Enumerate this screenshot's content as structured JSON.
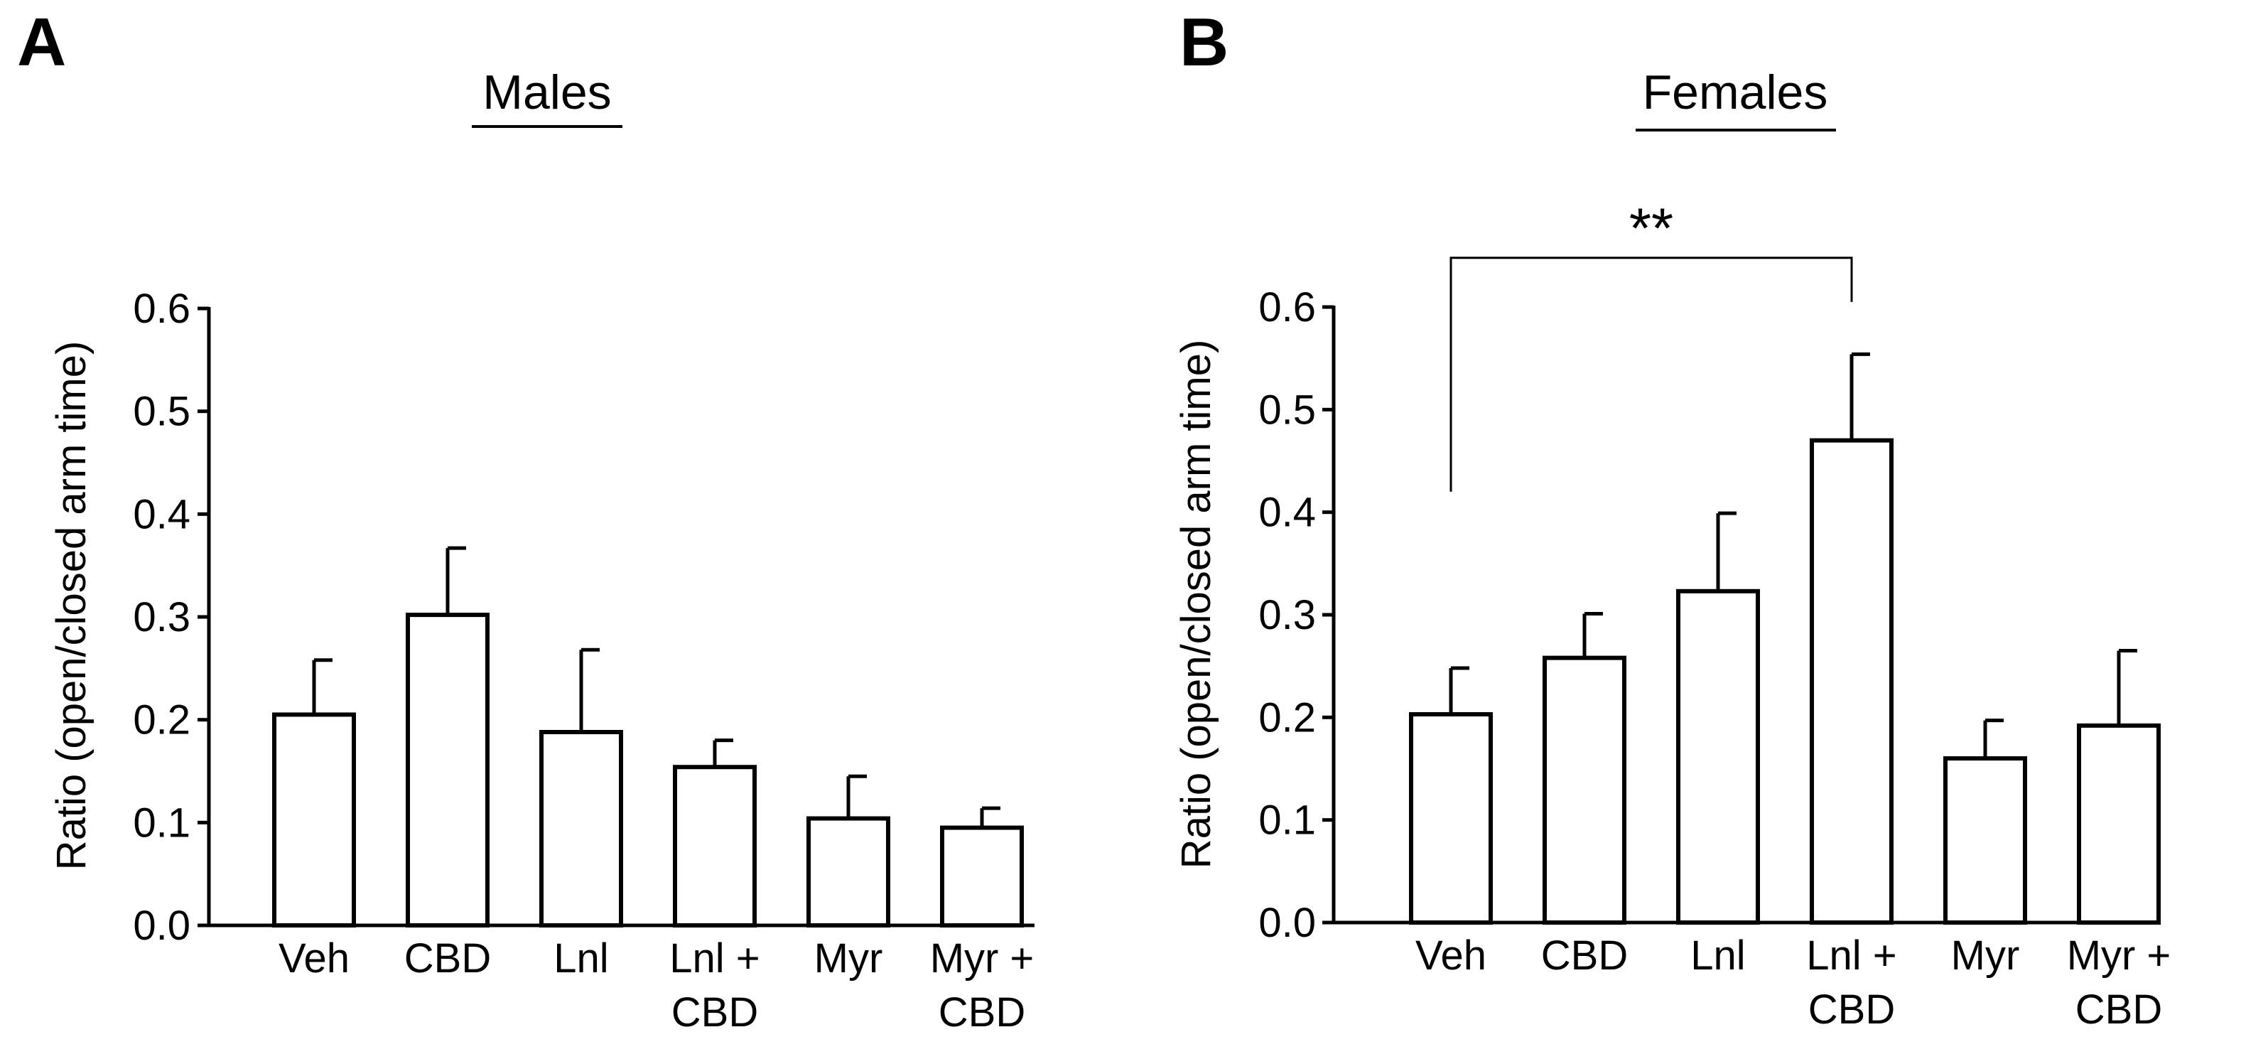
{
  "chart_data": [
    {
      "panel": "A",
      "type": "bar",
      "title": "Males",
      "ylabel": "Ratio (open/closed arm time)",
      "xlabel": "",
      "ylim": [
        0,
        0.6
      ],
      "yticks": [
        "0.0",
        "0.1",
        "0.2",
        "0.3",
        "0.4",
        "0.5",
        "0.6"
      ],
      "categories": [
        [
          "Veh"
        ],
        [
          "CBD"
        ],
        [
          "Lnl"
        ],
        [
          "Lnl +",
          "CBD"
        ],
        [
          "Myr"
        ],
        [
          "Myr +",
          "CBD"
        ]
      ],
      "values": [
        0.205,
        0.302,
        0.188,
        0.154,
        0.104,
        0.095
      ],
      "errors": [
        0.053,
        0.065,
        0.08,
        0.026,
        0.041,
        0.019
      ],
      "significance": []
    },
    {
      "panel": "B",
      "type": "bar",
      "title": "Females",
      "ylabel": "Ratio (open/closed arm time)",
      "xlabel": "",
      "ylim": [
        0,
        0.6
      ],
      "yticks": [
        "0.0",
        "0.1",
        "0.2",
        "0.3",
        "0.4",
        "0.5",
        "0.6"
      ],
      "categories": [
        [
          "Veh"
        ],
        [
          "CBD"
        ],
        [
          "Lnl"
        ],
        [
          "Lnl +",
          "CBD"
        ],
        [
          "Myr"
        ],
        [
          "Myr +",
          "CBD"
        ]
      ],
      "values": [
        0.203,
        0.258,
        0.323,
        0.47,
        0.16,
        0.192
      ],
      "errors": [
        0.045,
        0.043,
        0.076,
        0.084,
        0.037,
        0.073
      ],
      "significance": [
        {
          "from": 0,
          "to": 3,
          "label": "**",
          "level": 0.648,
          "left_drop": 0.42,
          "right_drop": 0.605
        }
      ]
    }
  ]
}
